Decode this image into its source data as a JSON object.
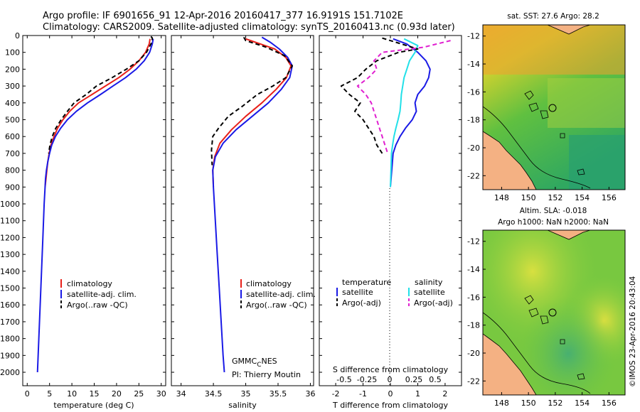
{
  "header": {
    "line1": "Argo profile: IF 6901656_91 12-Apr-2016 20160417_377 16.9191S 151.7102E",
    "line2": "Climatology: CARS2009. Satellite-adjusted climatology: synTS_20160413.nc (0.93d later)"
  },
  "colors": {
    "climatology": "#e8201a",
    "satellite": "#1a1ae6",
    "argo": "#000000",
    "sal_satellite": "#22e0e8",
    "sal_argo": "#e020d0",
    "land": "#f4b183"
  },
  "chart_data": [
    {
      "type": "line",
      "id": "temperature",
      "xlabel": "temperature (deg C)",
      "ylabel": "",
      "xlim": [
        -1,
        31
      ],
      "ylim": [
        2080,
        0
      ],
      "xticks": [
        0,
        5,
        10,
        15,
        20,
        25,
        30
      ],
      "yticks": [
        0,
        100,
        200,
        300,
        400,
        500,
        600,
        700,
        800,
        900,
        1000,
        1100,
        1200,
        1300,
        1400,
        1500,
        1600,
        1700,
        1800,
        1900,
        2000
      ],
      "legend": [
        "climatology",
        "satellite-adj. clim.",
        "Argo(..raw -QC)"
      ],
      "series": [
        {
          "name": "climatology",
          "style": "solid",
          "color": "#e8201a",
          "points": [
            [
              27.5,
              20
            ],
            [
              27.3,
              50
            ],
            [
              26.5,
              100
            ],
            [
              25,
              150
            ],
            [
              23,
              200
            ],
            [
              20.5,
              250
            ],
            [
              17.5,
              300
            ],
            [
              14.5,
              350
            ],
            [
              11.5,
              400
            ],
            [
              9.5,
              450
            ],
            [
              8,
              500
            ],
            [
              6.8,
              550
            ],
            [
              6,
              600
            ],
            [
              5.3,
              650
            ],
            [
              4.9,
              700
            ],
            [
              4.6,
              750
            ],
            [
              4.4,
              800
            ],
            [
              4.2,
              850
            ],
            [
              4,
              900
            ]
          ]
        },
        {
          "name": "satellite-adj. clim.",
          "style": "solid",
          "color": "#1a1ae6",
          "points": [
            [
              28.2,
              20
            ],
            [
              28,
              50
            ],
            [
              27.4,
              100
            ],
            [
              26.2,
              150
            ],
            [
              24.4,
              200
            ],
            [
              22,
              250
            ],
            [
              19.2,
              300
            ],
            [
              16.4,
              350
            ],
            [
              13.5,
              400
            ],
            [
              11,
              450
            ],
            [
              9,
              500
            ],
            [
              7.5,
              550
            ],
            [
              6.3,
              600
            ],
            [
              5.5,
              650
            ],
            [
              5,
              700
            ],
            [
              4.6,
              750
            ],
            [
              4.3,
              800
            ],
            [
              4.1,
              850
            ],
            [
              4,
              900
            ],
            [
              3.8,
              1000
            ],
            [
              3.5,
              1200
            ],
            [
              3.2,
              1400
            ],
            [
              2.9,
              1600
            ],
            [
              2.6,
              1800
            ],
            [
              2.3,
              2000
            ]
          ]
        },
        {
          "name": "Argo(..raw -QC)",
          "style": "dashed",
          "color": "#000000",
          "points": [
            [
              27.7,
              5
            ],
            [
              28,
              15
            ],
            [
              27.9,
              40
            ],
            [
              27.3,
              70
            ],
            [
              26.7,
              100
            ],
            [
              25,
              150
            ],
            [
              22.2,
              200
            ],
            [
              19,
              250
            ],
            [
              15.5,
              300
            ],
            [
              13.2,
              350
            ],
            [
              10.5,
              400
            ],
            [
              9,
              450
            ],
            [
              7.6,
              500
            ],
            [
              6.4,
              550
            ],
            [
              5.6,
              600
            ],
            [
              5.1,
              650
            ],
            [
              4.8,
              700
            ]
          ]
        }
      ]
    },
    {
      "type": "line",
      "id": "salinity",
      "xlabel": "salinity",
      "xlim": [
        33.85,
        36.05
      ],
      "ylim": [
        2080,
        0
      ],
      "xticks": [
        34,
        34.5,
        35,
        35.5,
        36
      ],
      "legend": [
        "climatology",
        "satellite-adj. clim.",
        "Argo(..raw -QC)"
      ],
      "annotation": "GMMC_CNES",
      "annotation_main": "GMMC",
      "annotation_sub": "C",
      "annotation_end": "NES",
      "pi": "PI: Thierry Moutin",
      "series": [
        {
          "name": "climatology",
          "style": "solid",
          "color": "#e8201a",
          "points": [
            [
              35.0,
              20
            ],
            [
              35.15,
              40
            ],
            [
              35.45,
              80
            ],
            [
              35.62,
              130
            ],
            [
              35.7,
              180
            ],
            [
              35.63,
              250
            ],
            [
              35.47,
              320
            ],
            [
              35.25,
              400
            ],
            [
              35.0,
              480
            ],
            [
              34.78,
              560
            ],
            [
              34.6,
              640
            ],
            [
              34.52,
              720
            ],
            [
              34.49,
              800
            ],
            [
              34.5,
              900
            ]
          ]
        },
        {
          "name": "satellite-adj. clim.",
          "style": "solid",
          "color": "#1a1ae6",
          "points": [
            [
              35.25,
              10
            ],
            [
              35.38,
              40
            ],
            [
              35.52,
              80
            ],
            [
              35.65,
              130
            ],
            [
              35.72,
              180
            ],
            [
              35.68,
              250
            ],
            [
              35.55,
              320
            ],
            [
              35.35,
              400
            ],
            [
              35.1,
              480
            ],
            [
              34.85,
              560
            ],
            [
              34.65,
              640
            ],
            [
              34.53,
              720
            ],
            [
              34.49,
              800
            ],
            [
              34.5,
              900
            ],
            [
              34.53,
              1100
            ],
            [
              34.56,
              1300
            ],
            [
              34.59,
              1500
            ],
            [
              34.62,
              1700
            ],
            [
              34.65,
              1900
            ],
            [
              34.67,
              2000
            ]
          ]
        },
        {
          "name": "Argo(..raw -QC)",
          "style": "dashed",
          "color": "#000000",
          "points": [
            [
              34.97,
              10
            ],
            [
              35.0,
              30
            ],
            [
              35.32,
              70
            ],
            [
              35.6,
              120
            ],
            [
              35.72,
              180
            ],
            [
              35.62,
              250
            ],
            [
              35.42,
              300
            ],
            [
              35.18,
              350
            ],
            [
              34.95,
              420
            ],
            [
              34.73,
              480
            ],
            [
              34.58,
              550
            ],
            [
              34.49,
              600
            ],
            [
              34.47,
              680
            ],
            [
              34.48,
              770
            ]
          ]
        }
      ]
    },
    {
      "type": "line",
      "id": "difference",
      "xlabel": "T difference from climatology",
      "x2label": "S difference from climatology",
      "xlim": [
        -2.6,
        2.6
      ],
      "ylim": [
        2080,
        0
      ],
      "xticks": [
        -2,
        -1,
        0,
        1,
        2
      ],
      "x2tick_labels": [
        "-0.5",
        "-0.25",
        "0",
        "0.25",
        "0.5"
      ],
      "legend_left_title": "temperature",
      "legend_right_title": "salinity",
      "legend": [
        "satellite",
        "Argo(-adj)",
        "satellite",
        "Argo(-adj)"
      ],
      "series": [
        {
          "name": "temperature satellite",
          "style": "solid",
          "color": "#1a1ae6",
          "points": [
            [
              0.1,
              20
            ],
            [
              0.6,
              50
            ],
            [
              1.0,
              100
            ],
            [
              1.3,
              150
            ],
            [
              1.45,
              200
            ],
            [
              1.4,
              250
            ],
            [
              1.25,
              300
            ],
            [
              1.0,
              350
            ],
            [
              0.9,
              400
            ],
            [
              0.95,
              450
            ],
            [
              0.8,
              500
            ],
            [
              0.55,
              550
            ],
            [
              0.35,
              600
            ],
            [
              0.2,
              650
            ],
            [
              0.1,
              700
            ],
            [
              0.05,
              800
            ],
            [
              0.0,
              900
            ]
          ]
        },
        {
          "name": "salinity satellite",
          "style": "solid",
          "color": "#22e0e8",
          "points": [
            [
              0.5,
              20
            ],
            [
              1.0,
              60
            ],
            [
              0.9,
              100
            ],
            [
              0.7,
              150
            ],
            [
              0.6,
              200
            ],
            [
              0.5,
              250
            ],
            [
              0.45,
              300
            ],
            [
              0.4,
              350
            ],
            [
              0.38,
              400
            ],
            [
              0.35,
              450
            ],
            [
              0.28,
              500
            ],
            [
              0.2,
              550
            ],
            [
              0.13,
              600
            ],
            [
              0.08,
              650
            ],
            [
              0.04,
              700
            ],
            [
              0.02,
              800
            ],
            [
              0.0,
              900
            ]
          ]
        },
        {
          "name": "temperature Argo(-adj)",
          "style": "dashed",
          "color": "#000000",
          "points": [
            [
              -0.3,
              15
            ],
            [
              0.2,
              40
            ],
            [
              1.0,
              80
            ],
            [
              0.3,
              100
            ],
            [
              -0.5,
              150
            ],
            [
              -0.9,
              200
            ],
            [
              -1.2,
              250
            ],
            [
              -1.8,
              300
            ],
            [
              -1.5,
              350
            ],
            [
              -1.1,
              400
            ],
            [
              -1.3,
              450
            ],
            [
              -1.0,
              500
            ],
            [
              -0.8,
              550
            ],
            [
              -0.6,
              600
            ],
            [
              -0.5,
              650
            ],
            [
              -0.3,
              700
            ]
          ]
        },
        {
          "name": "salinity Argo(-adj)",
          "style": "dashed",
          "color": "#e020d0",
          "points": [
            [
              2.2,
              30
            ],
            [
              1.2,
              70
            ],
            [
              -0.3,
              100
            ],
            [
              -0.6,
              150
            ],
            [
              -0.5,
              200
            ],
            [
              -0.8,
              250
            ],
            [
              -1.2,
              300
            ],
            [
              -0.9,
              350
            ],
            [
              -0.7,
              400
            ],
            [
              -0.6,
              450
            ],
            [
              -0.5,
              500
            ],
            [
              -0.4,
              550
            ],
            [
              -0.3,
              600
            ],
            [
              -0.2,
              650
            ],
            [
              -0.1,
              700
            ]
          ]
        }
      ]
    },
    {
      "type": "heatmap",
      "id": "sst_map",
      "title": "sat. SST: 27.6  Argo: 28.2",
      "lon_ticks": [
        148,
        150,
        152,
        154,
        156
      ],
      "lat_ticks": [
        -12,
        -14,
        -16,
        -18,
        -20,
        -22
      ],
      "lon_range": [
        146.6,
        157.2
      ],
      "lat_range": [
        -23.0,
        -11.2
      ],
      "argo_position": [
        151.71,
        -16.92
      ]
    },
    {
      "type": "heatmap",
      "id": "sla_map",
      "title": "Altim. SLA: -0.018",
      "subtitle": "Argo h1000: NaN h2000: NaN",
      "lon_ticks": [
        148,
        150,
        152,
        154,
        156
      ],
      "lat_ticks": [
        -12,
        -14,
        -16,
        -18,
        -20,
        -22
      ],
      "lon_range": [
        146.6,
        157.2
      ],
      "lat_range": [
        -23.0,
        -11.2
      ],
      "argo_position": [
        151.71,
        -16.92
      ]
    }
  ],
  "footer": {
    "watermark": "©IMOS 23-Apr-2016 20:43:04"
  }
}
